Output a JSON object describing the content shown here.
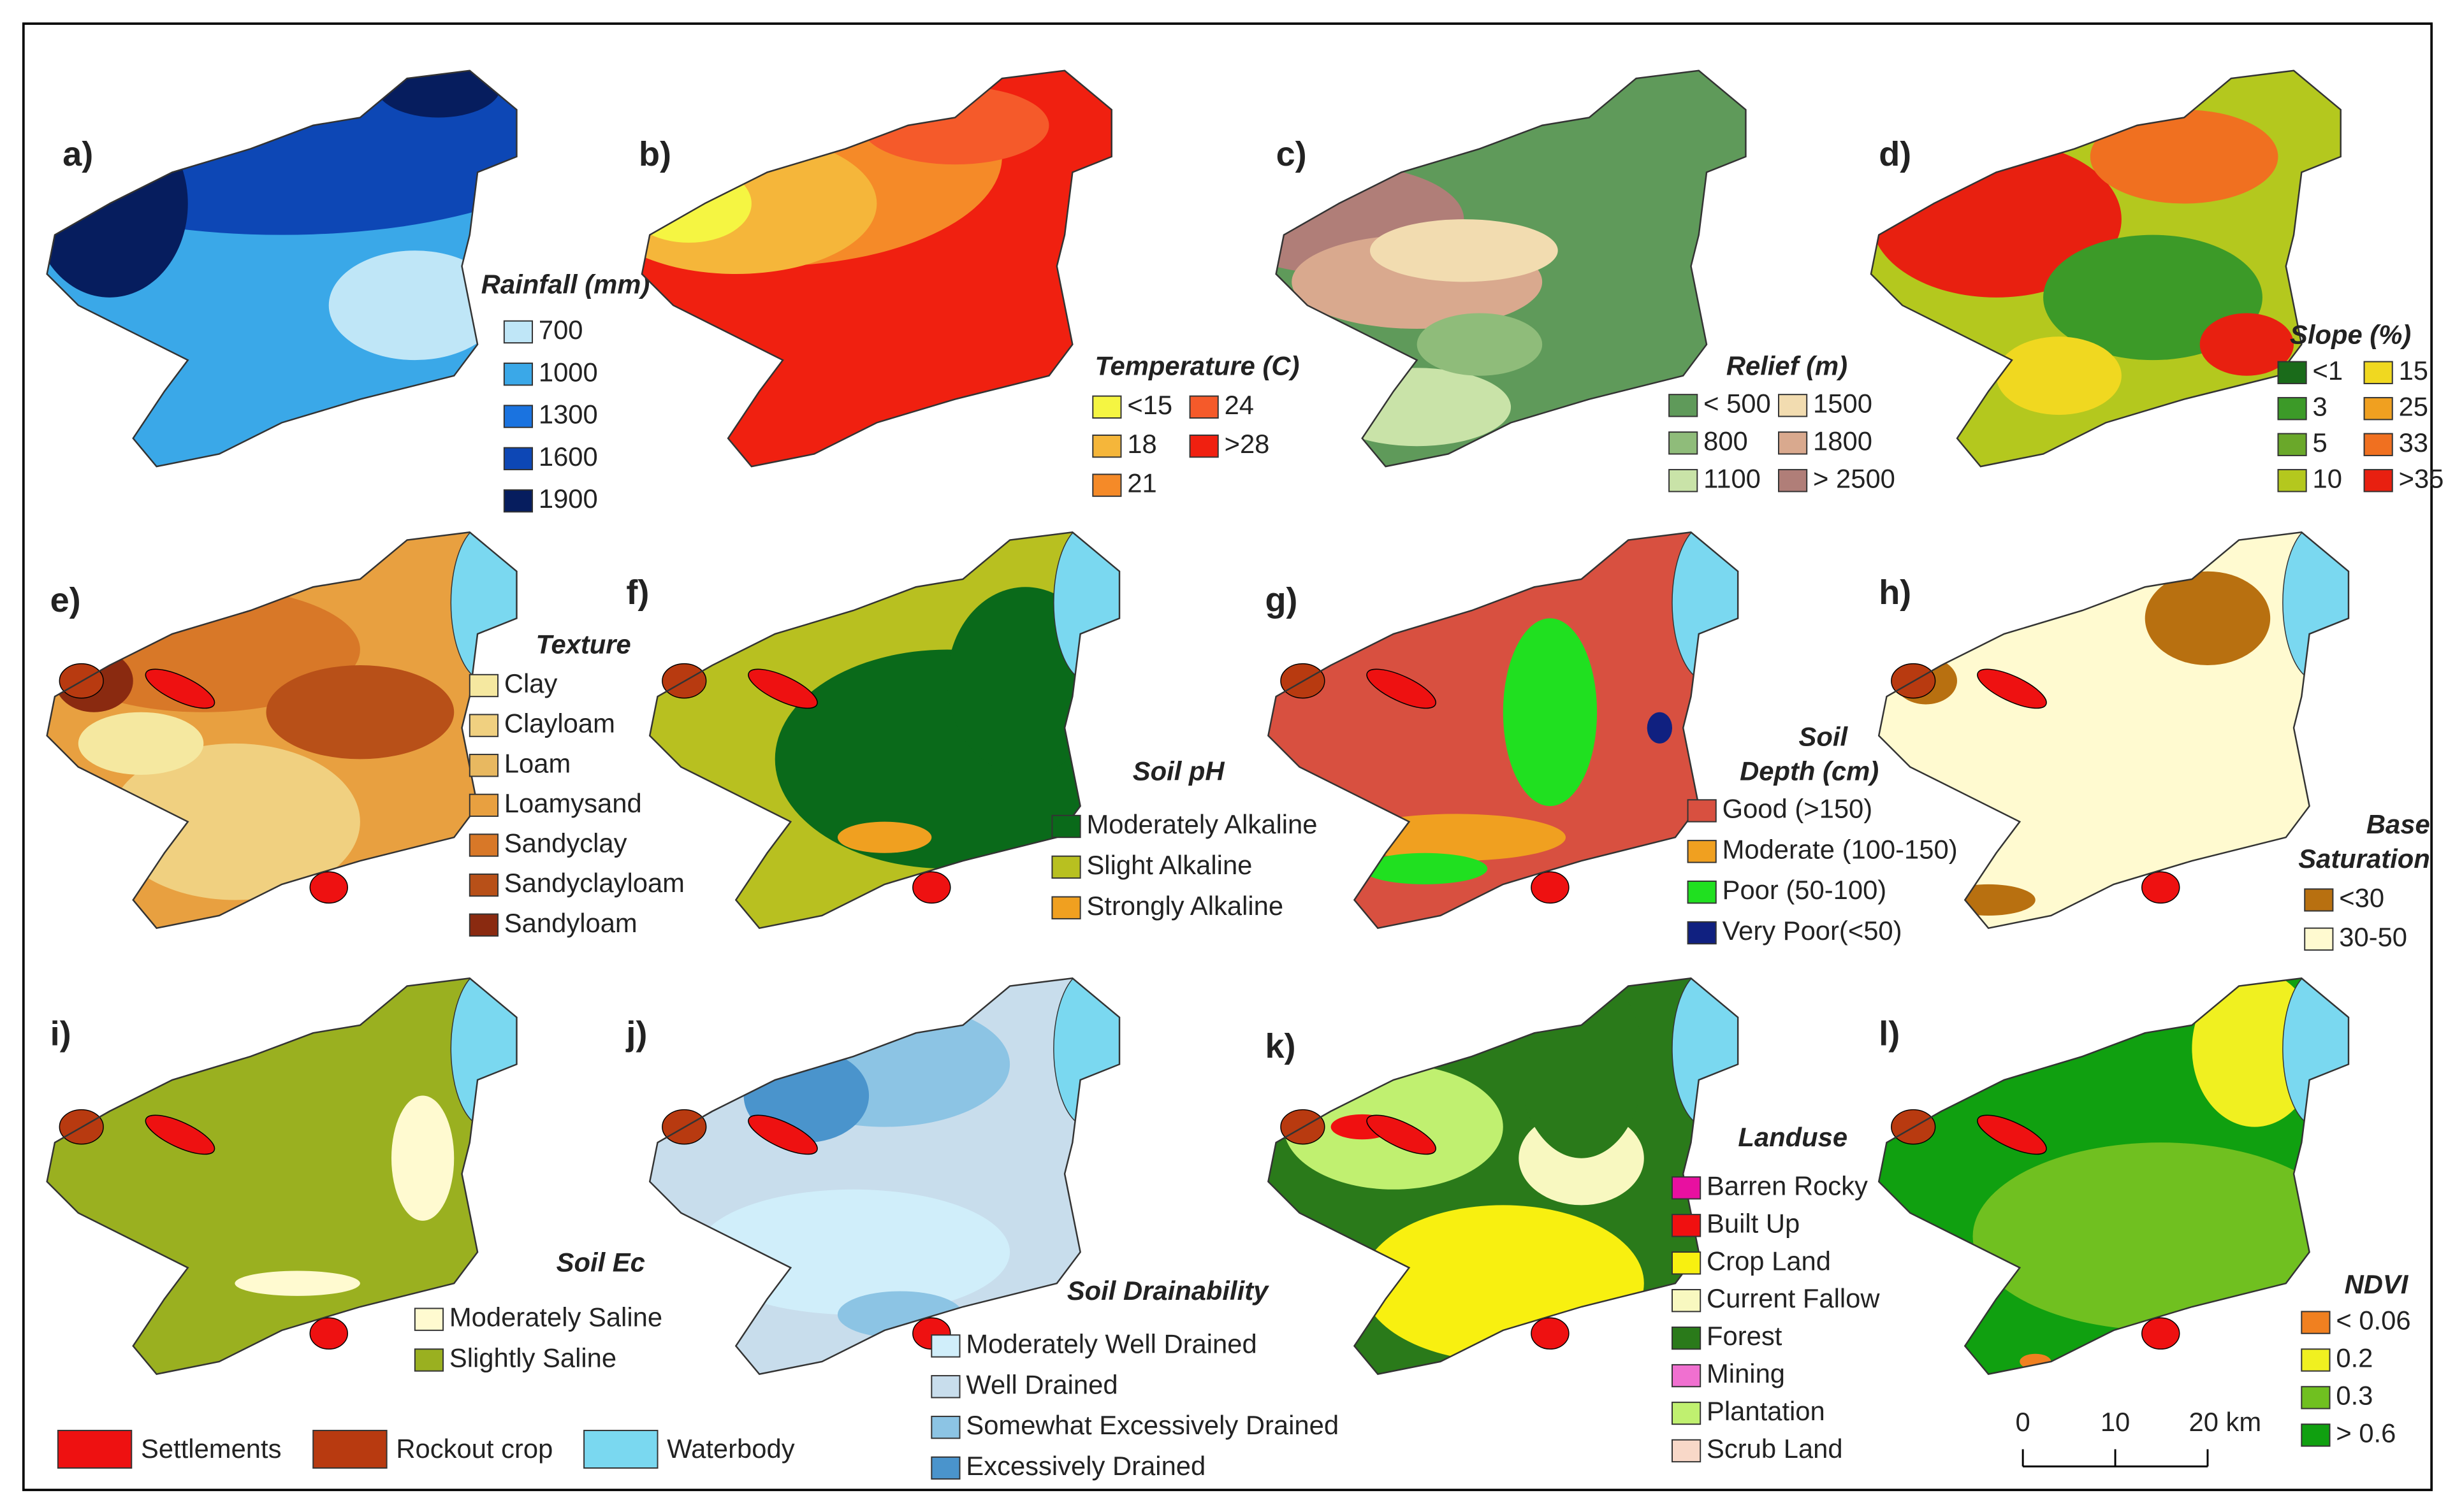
{
  "panels": [
    {
      "label": "a)",
      "title": "Rainfall (mm)",
      "legend": [
        {
          "label": "700",
          "color": "#bfe6f7"
        },
        {
          "label": "1000",
          "color": "#3aa8e8"
        },
        {
          "label": "1300",
          "color": "#1a73e0"
        },
        {
          "label": "1600",
          "color": "#0d47b5"
        },
        {
          "label": "1900",
          "color": "#061d5e"
        }
      ]
    },
    {
      "label": "b)",
      "title": "Temperature (C)",
      "legend": [
        {
          "label": "<15",
          "color": "#f5f542"
        },
        {
          "label": "18",
          "color": "#f5b63a"
        },
        {
          "label": "21",
          "color": "#f58a28"
        },
        {
          "label": "24",
          "color": "#f55a2a"
        },
        {
          "label": ">28",
          "color": "#f02010"
        }
      ]
    },
    {
      "label": "c)",
      "title": "Relief (m)",
      "legend": [
        {
          "label": "< 500",
          "color": "#5f9a5a"
        },
        {
          "label": "800",
          "color": "#8fbc7a"
        },
        {
          "label": "1100",
          "color": "#c9e3a8"
        },
        {
          "label": "1500",
          "color": "#f2dcb0"
        },
        {
          "label": "1800",
          "color": "#d9a98e"
        },
        {
          "label": "> 2500",
          "color": "#b07e78"
        }
      ]
    },
    {
      "label": "d)",
      "title": "Slope (%)",
      "legend": [
        {
          "label": "<1",
          "color": "#1a6b1a"
        },
        {
          "label": "3",
          "color": "#3c9a28"
        },
        {
          "label": "5",
          "color": "#6aa82a"
        },
        {
          "label": "10",
          "color": "#b4c81e"
        },
        {
          "label": "15",
          "color": "#f0d820"
        },
        {
          "label": "25",
          "color": "#f0a020"
        },
        {
          "label": "33",
          "color": "#f07020"
        },
        {
          "label": ">35",
          "color": "#e82010"
        }
      ]
    },
    {
      "label": "e)",
      "title": "Texture",
      "legend": [
        {
          "label": "Clay",
          "color": "#f5e8a0"
        },
        {
          "label": "Clayloam",
          "color": "#f0d080"
        },
        {
          "label": "Loam",
          "color": "#e8b860"
        },
        {
          "label": "Loamysand",
          "color": "#e8a040"
        },
        {
          "label": "Sandyclay",
          "color": "#d87828"
        },
        {
          "label": "Sandyclayloam",
          "color": "#b85018"
        },
        {
          "label": "Sandyloam",
          "color": "#8a2a10"
        }
      ]
    },
    {
      "label": "f)",
      "title": "Soil pH",
      "legend": [
        {
          "label": "Moderately Alkaline",
          "color": "#0a6a1a"
        },
        {
          "label": "Slight Alkaline",
          "color": "#b8c020"
        },
        {
          "label": "Strongly Alkaline",
          "color": "#f0a020"
        }
      ]
    },
    {
      "label": "g)",
      "title_lines": [
        "Soil",
        "Depth (cm)"
      ],
      "legend": [
        {
          "label": "Good (>150)",
          "color": "#d85040"
        },
        {
          "label": "Moderate (100-150)",
          "color": "#f0a020"
        },
        {
          "label": "Poor (50-100)",
          "color": "#20e020"
        },
        {
          "label": "Very Poor(<50)",
          "color": "#102080"
        }
      ]
    },
    {
      "label": "h)",
      "title_lines": [
        "Base",
        "Saturation"
      ],
      "legend": [
        {
          "label": "<30",
          "color": "#b87010"
        },
        {
          "label": "30-50",
          "color": "#fffad0"
        }
      ]
    },
    {
      "label": "i)",
      "title": "Soil Ec",
      "legend": [
        {
          "label": "Moderately Saline",
          "color": "#fffad0"
        },
        {
          "label": "Slightly Saline",
          "color": "#9ab020"
        }
      ]
    },
    {
      "label": "j)",
      "title": "Soil Drainability",
      "legend": [
        {
          "label": "Moderately Well Drained",
          "color": "#d0eefa"
        },
        {
          "label": "Well Drained",
          "color": "#c8ddec"
        },
        {
          "label": "Somewhat Excessively Drained",
          "color": "#8cc4e4"
        },
        {
          "label": "Excessively Drained",
          "color": "#4a94cc"
        }
      ]
    },
    {
      "label": "k)",
      "title": "Landuse",
      "legend": [
        {
          "label": "Barren Rocky",
          "color": "#e810a0"
        },
        {
          "label": "Built Up",
          "color": "#f01010"
        },
        {
          "label": "Crop Land",
          "color": "#f8f010"
        },
        {
          "label": "Current Fallow",
          "color": "#f8f8c0"
        },
        {
          "label": "Forest",
          "color": "#2a7a1a"
        },
        {
          "label": "Mining",
          "color": "#f070d0"
        },
        {
          "label": "Plantation",
          "color": "#c0f070"
        },
        {
          "label": "Scrub Land",
          "color": "#f8d8c8"
        }
      ]
    },
    {
      "label": "l)",
      "title": "NDVI",
      "legend": [
        {
          "label": "< 0.06",
          "color": "#f08020"
        },
        {
          "label": "0.2",
          "color": "#f0f020"
        },
        {
          "label": "0.3",
          "color": "#70c020"
        },
        {
          "label": "> 0.6",
          "color": "#10a010"
        }
      ]
    }
  ],
  "common_legend": [
    {
      "label": "Settlements",
      "color": "#ee1111"
    },
    {
      "label": "Rockout crop",
      "color": "#b83a10"
    },
    {
      "label": "Waterbody",
      "color": "#7ad8f0"
    }
  ],
  "scale_bar": {
    "labels": [
      "0",
      "10",
      "20 km"
    ]
  }
}
